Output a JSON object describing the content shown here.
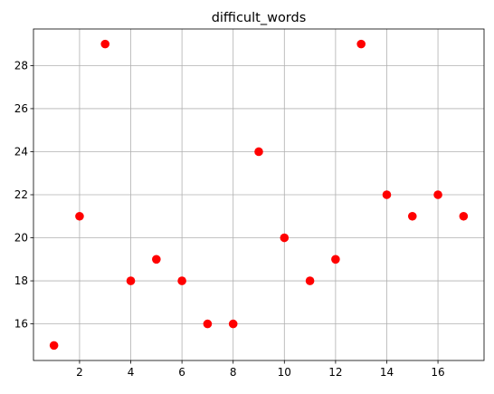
{
  "chart_data": {
    "type": "scatter",
    "title": "difficult_words",
    "xlabel": "",
    "ylabel": "",
    "xlim": [
      0.2,
      17.8
    ],
    "ylim": [
      14.3,
      29.7
    ],
    "xticks": [
      2,
      4,
      6,
      8,
      10,
      12,
      14,
      16
    ],
    "yticks": [
      16,
      18,
      20,
      22,
      24,
      26,
      28
    ],
    "grid": true,
    "marker_color": "#ff0000",
    "grid_color": "#b0b0b0",
    "series": [
      {
        "x": [
          1,
          2,
          3,
          4,
          5,
          6,
          7,
          8,
          9,
          10,
          11,
          12,
          13,
          14,
          15,
          16,
          17
        ],
        "y": [
          15,
          21,
          29,
          18,
          19,
          18,
          16,
          16,
          24,
          20,
          18,
          19,
          29,
          22,
          21,
          22,
          21
        ]
      }
    ]
  }
}
